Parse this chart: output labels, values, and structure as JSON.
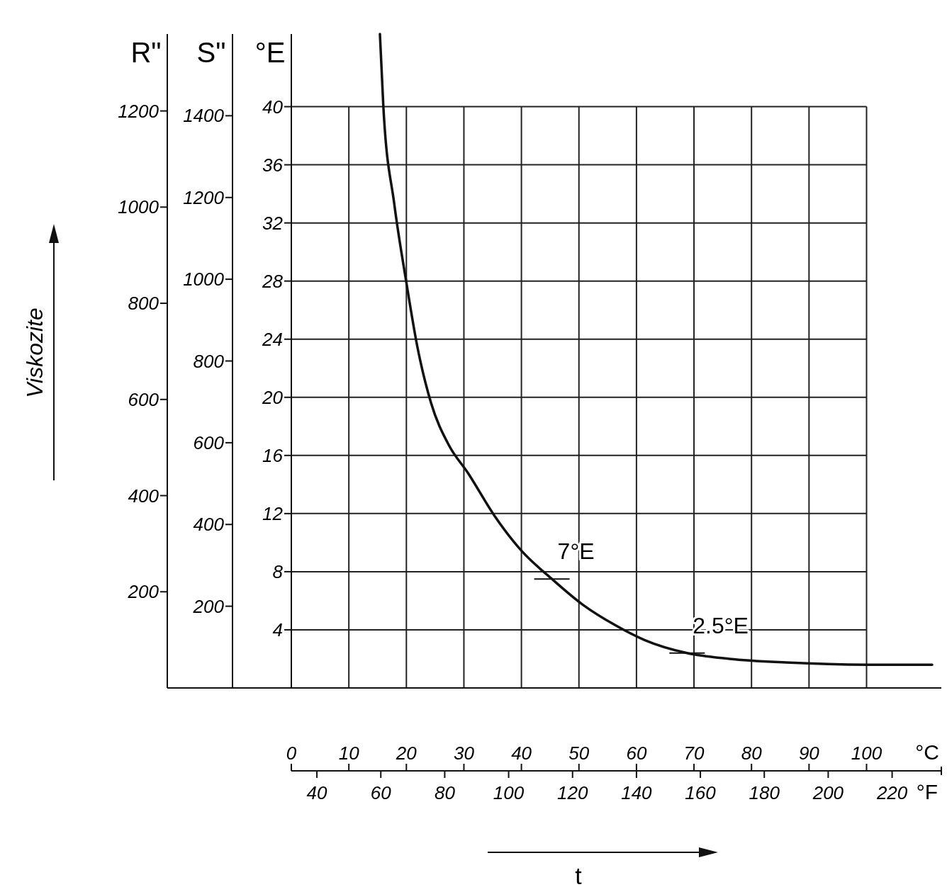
{
  "chart_data": {
    "type": "line",
    "ylabel": "°E",
    "y2label": "S\"",
    "y3label": "R\"",
    "xlabel": "°C",
    "x2label": "°F",
    "xlim": [
      0,
      113
    ],
    "xticks": [
      0,
      10,
      20,
      30,
      40,
      50,
      60,
      70,
      80,
      90,
      100
    ],
    "x2lim": [
      32,
      235.4
    ],
    "x2ticks": [
      40,
      60,
      80,
      100,
      120,
      140,
      160,
      180,
      200,
      220
    ],
    "ylim": [
      0,
      45
    ],
    "yticks": [
      4,
      8,
      12,
      16,
      20,
      24,
      28,
      32,
      36,
      40
    ],
    "y2lim": [
      0,
      1600
    ],
    "y2ticks": [
      200,
      400,
      600,
      800,
      1000,
      1200,
      1400
    ],
    "y3lim": [
      0,
      1360
    ],
    "y3ticks": [
      200,
      400,
      600,
      800,
      1000,
      1200
    ],
    "grid": true,
    "series": [
      {
        "color": "#111111",
        "x": [
          15.4,
          16.0,
          17.9,
          20.0,
          21.9,
          24.3,
          27.4,
          30.7,
          35.4,
          40.1,
          45.3,
          50.6,
          56.4,
          61.4,
          68.8,
          76.2,
          86,
          100,
          111.4
        ],
        "values": [
          45,
          40,
          33.3,
          27.9,
          23.5,
          19.6,
          16.7,
          14.8,
          11.8,
          9.4,
          7.5,
          5.75,
          4.3,
          3.3,
          2.4,
          2.0,
          1.75,
          1.6,
          1.6
        ]
      }
    ],
    "annotations": [
      "Viskozite",
      "t",
      {
        "text": "7°E",
        "x": 45.3,
        "y": 7.5
      },
      {
        "text": "2.5°E",
        "x": 68.8,
        "y": 2.4
      }
    ]
  }
}
